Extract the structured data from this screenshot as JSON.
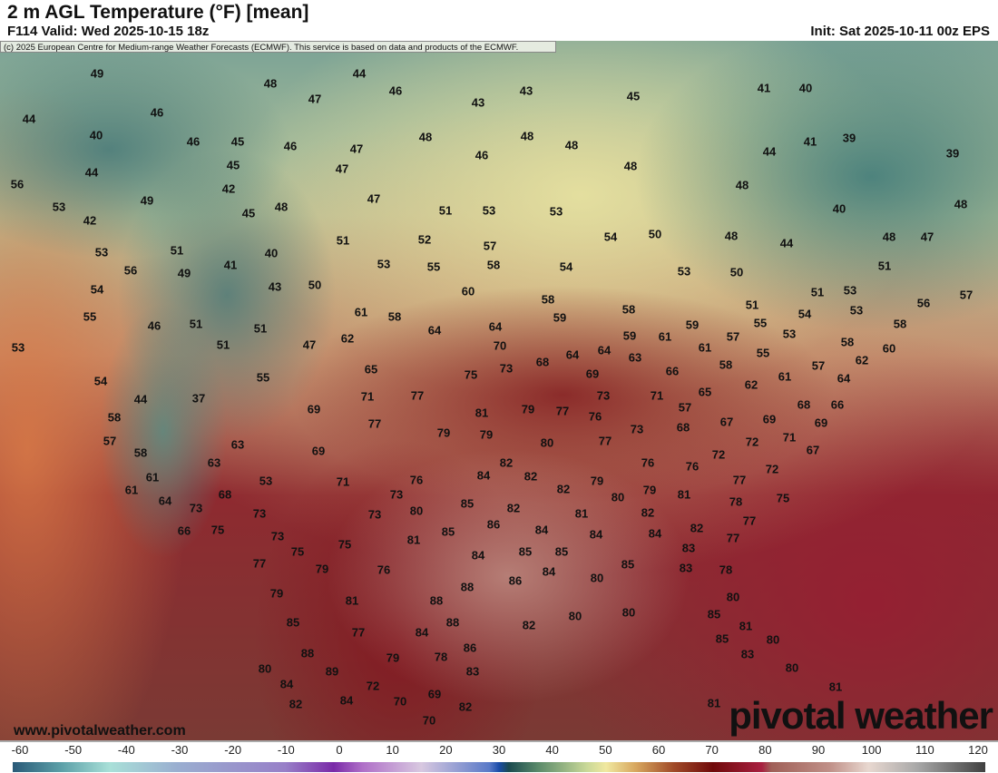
{
  "header": {
    "title": "2 m AGL Temperature (°F) [mean]",
    "valid": "F114 Valid: Wed 2025-10-15 18z",
    "init": "Init: Sat 2025-10-11 00z EPS"
  },
  "copyright": "(c) 2025 European Centre for Medium-range Weather Forecasts (ECMWF). This service is based on data and products of the ECMWF.",
  "website": "www.pivotalweather.com",
  "logo": "pivotal weather",
  "map": {
    "units": "°F",
    "labels": [
      "49",
      "48",
      "44",
      "46",
      "43",
      "45",
      "40",
      "41",
      "44",
      "46",
      "43",
      "47",
      "40",
      "46",
      "45",
      "46",
      "47",
      "48",
      "48",
      "48",
      "41",
      "39",
      "39",
      "44",
      "45",
      "47",
      "46",
      "48",
      "44",
      "56",
      "42",
      "49",
      "47",
      "48",
      "53",
      "42",
      "45",
      "48",
      "51",
      "53",
      "53",
      "40",
      "48",
      "51",
      "40",
      "51",
      "52",
      "57",
      "54",
      "50",
      "48",
      "44",
      "48",
      "47",
      "53",
      "56",
      "41",
      "49",
      "53",
      "55",
      "58",
      "54",
      "53",
      "50",
      "51",
      "54",
      "43",
      "50",
      "60",
      "58",
      "51",
      "53",
      "56",
      "57",
      "55",
      "46",
      "51",
      "51",
      "61",
      "58",
      "64",
      "64",
      "59",
      "58",
      "51",
      "55",
      "54",
      "53",
      "58",
      "53",
      "51",
      "47",
      "62",
      "70",
      "59",
      "61",
      "59",
      "57",
      "53",
      "58",
      "60",
      "64",
      "64",
      "68",
      "63",
      "61",
      "55",
      "57",
      "62",
      "54",
      "55",
      "65",
      "75",
      "73",
      "69",
      "66",
      "58",
      "61",
      "64",
      "62",
      "44",
      "37",
      "71",
      "77",
      "73",
      "71",
      "65",
      "68",
      "66",
      "58",
      "69",
      "77",
      "79",
      "81",
      "79",
      "79",
      "77",
      "76",
      "57",
      "68",
      "67",
      "69",
      "69",
      "57",
      "73",
      "71",
      "63",
      "80",
      "77",
      "72",
      "67",
      "58",
      "69",
      "76",
      "76",
      "72",
      "63",
      "82",
      "77",
      "72",
      "61",
      "53",
      "71",
      "76",
      "84",
      "82",
      "79",
      "61",
      "64",
      "68",
      "73",
      "82",
      "80",
      "79",
      "81",
      "78",
      "75",
      "73",
      "85",
      "82",
      "81",
      "82",
      "77",
      "66",
      "75",
      "73",
      "73",
      "80",
      "86",
      "85",
      "84",
      "82",
      "84",
      "84",
      "81",
      "73",
      "75",
      "75",
      "77",
      "83",
      "85",
      "85",
      "84",
      "77",
      "79",
      "76",
      "86",
      "84",
      "80",
      "85",
      "83",
      "78",
      "88",
      "79",
      "81",
      "88",
      "80",
      "85",
      "84",
      "88",
      "82",
      "80",
      "80",
      "85",
      "81",
      "77",
      "86",
      "88",
      "79",
      "78",
      "85",
      "83",
      "80",
      "80",
      "89",
      "83",
      "80",
      "84",
      "72",
      "69",
      "81",
      "82",
      "84",
      "70",
      "82",
      "81",
      "70"
    ]
  },
  "colorbar": {
    "ticks": [
      "-60",
      "-50",
      "-40",
      "-30",
      "-20",
      "-10",
      "0",
      "10",
      "20",
      "30",
      "40",
      "50",
      "60",
      "70",
      "80",
      "90",
      "100",
      "110",
      "120"
    ],
    "range": [
      -60,
      120
    ]
  }
}
